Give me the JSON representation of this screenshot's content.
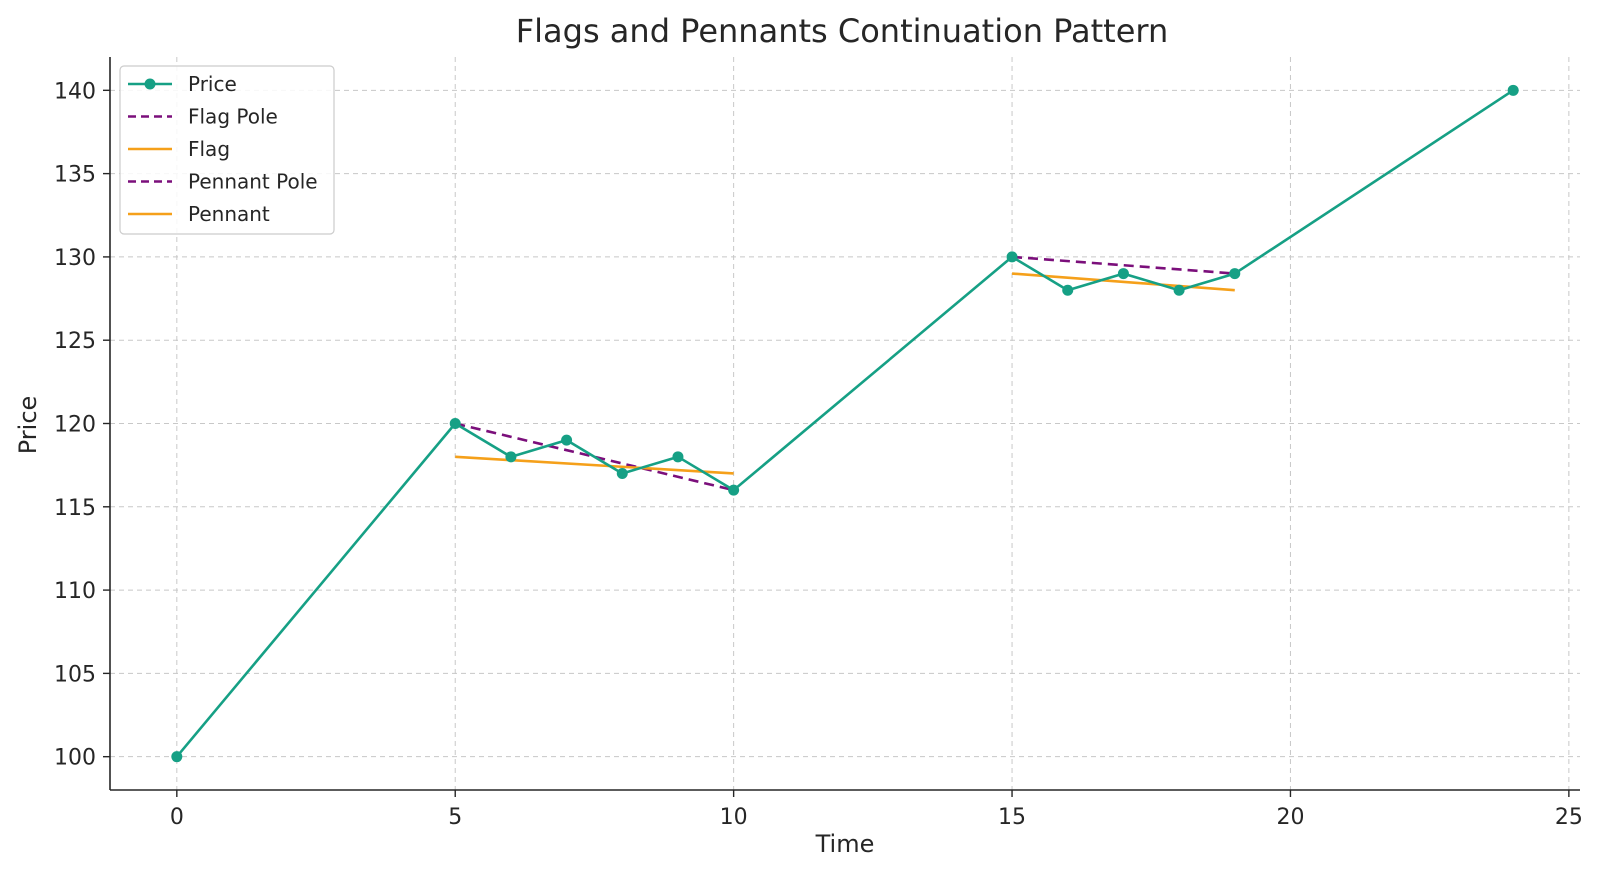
{
  "chart_data": {
    "type": "line",
    "title": "Flags and Pennants Continuation Pattern",
    "xlabel": "Time",
    "ylabel": "Price",
    "xlim": [
      -1.2,
      25.2
    ],
    "ylim": [
      98,
      142
    ],
    "xticks": [
      0,
      5,
      10,
      15,
      20,
      25
    ],
    "yticks": [
      100,
      105,
      110,
      115,
      120,
      125,
      130,
      135,
      140
    ],
    "grid": true,
    "legend_position": "top-left",
    "series": [
      {
        "name": "Price",
        "color": "#16a085",
        "style": "solid",
        "markers": true,
        "x": [
          0,
          5,
          6,
          7,
          8,
          9,
          10,
          15,
          16,
          17,
          18,
          19,
          24
        ],
        "y": [
          100,
          120,
          118,
          119,
          117,
          118,
          116,
          130,
          128,
          129,
          128,
          129,
          140
        ]
      },
      {
        "name": "Flag Pole",
        "color": "#7b0f7b",
        "style": "dashed",
        "markers": false,
        "x": [
          5,
          10
        ],
        "y": [
          120,
          116
        ]
      },
      {
        "name": "Flag",
        "color": "#f5a01a",
        "style": "solid",
        "markers": false,
        "x": [
          5,
          10
        ],
        "y": [
          118,
          117
        ]
      },
      {
        "name": "Pennant Pole",
        "color": "#7b0f7b",
        "style": "dashed",
        "markers": false,
        "x": [
          15,
          19
        ],
        "y": [
          130,
          129
        ]
      },
      {
        "name": "Pennant",
        "color": "#f5a01a",
        "style": "solid",
        "markers": false,
        "x": [
          15,
          19
        ],
        "y": [
          129,
          128
        ]
      }
    ]
  }
}
